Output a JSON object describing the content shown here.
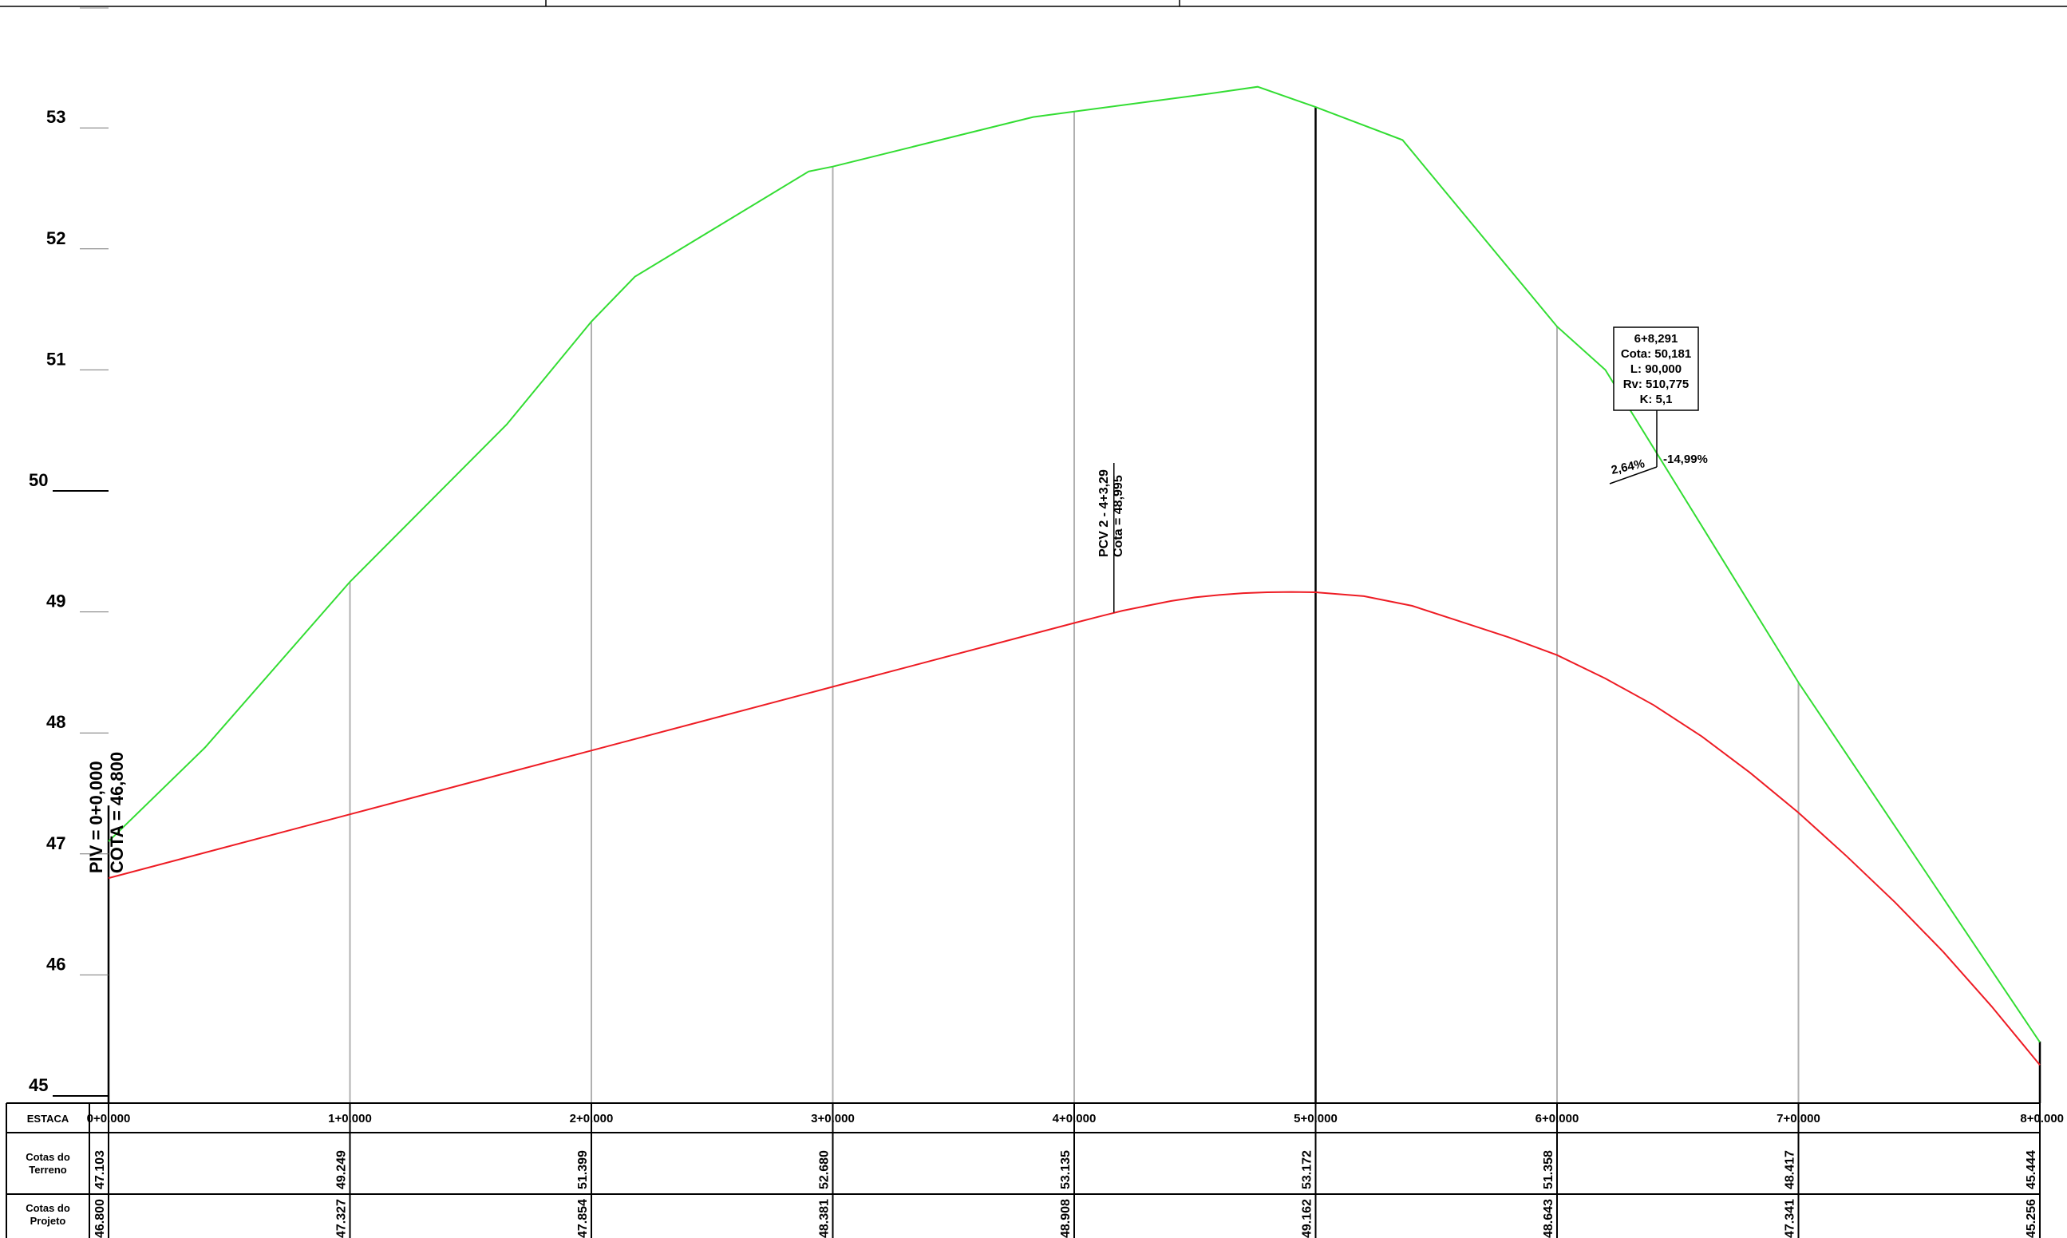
{
  "chart_data": {
    "type": "line",
    "x_unit": "estaca",
    "xlim": [
      0,
      8
    ],
    "ylim": [
      45,
      54
    ],
    "y_ticks": [
      {
        "value": 53,
        "label": "53"
      },
      {
        "value": 52,
        "label": "52"
      },
      {
        "value": 51,
        "label": "51"
      },
      {
        "value": 50,
        "label": "50"
      },
      {
        "value": 49,
        "label": "49"
      },
      {
        "value": 48,
        "label": "48"
      },
      {
        "value": 47,
        "label": "47"
      },
      {
        "value": 46,
        "label": "46"
      },
      {
        "value": 45,
        "label": "45"
      }
    ],
    "series": [
      {
        "key": "terreno",
        "color": "#33dd33",
        "points": [
          [
            0,
            47.103
          ],
          [
            0.4,
            47.88
          ],
          [
            1,
            49.249
          ],
          [
            1.65,
            50.55
          ],
          [
            2,
            51.399
          ],
          [
            2.18,
            51.77
          ],
          [
            2.9,
            52.64
          ],
          [
            3,
            52.68
          ],
          [
            3.83,
            53.09
          ],
          [
            4,
            53.135
          ],
          [
            4.55,
            53.28
          ],
          [
            4.76,
            53.34
          ],
          [
            5,
            53.172
          ],
          [
            5.36,
            52.9
          ],
          [
            6,
            51.358
          ],
          [
            6.2,
            51.0
          ],
          [
            7,
            48.417
          ],
          [
            8,
            45.444
          ]
        ]
      },
      {
        "key": "projeto",
        "color": "#ee1c24",
        "points": [
          [
            0,
            46.8
          ],
          [
            1,
            47.327
          ],
          [
            2,
            47.854
          ],
          [
            3,
            48.381
          ],
          [
            4,
            48.908
          ],
          [
            4.1,
            48.96
          ],
          [
            4.2,
            49.01
          ],
          [
            4.3,
            49.05
          ],
          [
            4.4,
            49.09
          ],
          [
            4.5,
            49.12
          ],
          [
            4.6,
            49.14
          ],
          [
            4.7,
            49.155
          ],
          [
            4.8,
            49.162
          ],
          [
            4.9,
            49.165
          ],
          [
            5,
            49.162
          ],
          [
            5.2,
            49.13
          ],
          [
            5.4,
            49.05
          ],
          [
            5.6,
            48.92
          ],
          [
            5.8,
            48.79
          ],
          [
            6,
            48.643
          ],
          [
            6.2,
            48.45
          ],
          [
            6.4,
            48.23
          ],
          [
            6.6,
            47.97
          ],
          [
            6.8,
            47.67
          ],
          [
            7,
            47.341
          ],
          [
            7.2,
            46.98
          ],
          [
            7.4,
            46.6
          ],
          [
            7.6,
            46.19
          ],
          [
            7.8,
            45.74
          ],
          [
            8,
            45.256
          ]
        ]
      }
    ],
    "stations": [
      {
        "x": 0,
        "label": "0+0.000",
        "terreno": "47.103",
        "projeto": "46.800"
      },
      {
        "x": 1,
        "label": "1+0.000",
        "terreno": "49.249",
        "projeto": "47.327"
      },
      {
        "x": 2,
        "label": "2+0.000",
        "terreno": "51.399",
        "projeto": "47.854"
      },
      {
        "x": 3,
        "label": "3+0.000",
        "terreno": "52.680",
        "projeto": "48.381"
      },
      {
        "x": 4,
        "label": "4+0.000",
        "terreno": "53.135",
        "projeto": "48.908"
      },
      {
        "x": 5,
        "label": "5+0.000",
        "terreno": "53.172",
        "projeto": "49.162"
      },
      {
        "x": 6,
        "label": "6+0.000",
        "terreno": "51.358",
        "projeto": "48.643"
      },
      {
        "x": 7,
        "label": "7+0.000",
        "terreno": "48.417",
        "projeto": "47.341"
      },
      {
        "x": 8,
        "label": "8+0.000",
        "terreno": "45.444",
        "projeto": "45.256"
      }
    ],
    "table_headers": {
      "estaca": "ESTACA",
      "terreno": [
        "Cotas do",
        "Terreno"
      ],
      "projeto": [
        "Cotas do",
        "Projeto"
      ]
    },
    "annotations": {
      "piv": {
        "x": 0,
        "elevation": 46.8,
        "lines": [
          "PIV = 0+0,000",
          "COTA = 46,800"
        ]
      },
      "pcv": {
        "x": 4.1645,
        "elevation": 48.995,
        "lines": [
          "PCV 2 - 4+3,29",
          "Cota = 48,995"
        ]
      },
      "piv_box": {
        "lines": [
          "6+8,291",
          "Cota: 50,181",
          "L: 90,000",
          "Rv: 510,775",
          "K: 5,1"
        ],
        "slope_in": "2,64%",
        "slope_out": "-14,99%"
      }
    }
  }
}
